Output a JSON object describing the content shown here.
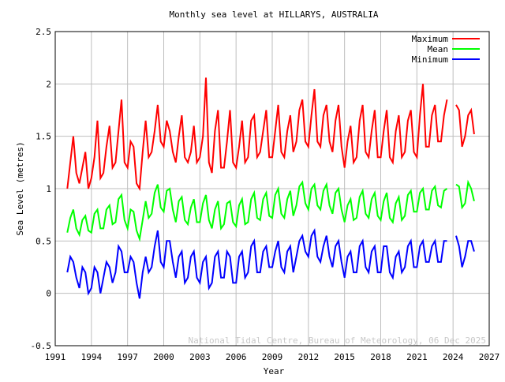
{
  "chart_data": {
    "type": "line",
    "title": "Monthly sea level at HILLARYS, AUSTRALIA",
    "xlabel": "Year",
    "ylabel": "Sea Level (metres)",
    "xlim": [
      1991,
      2027
    ],
    "ylim": [
      -0.5,
      2.5
    ],
    "xticks": [
      "1991",
      "1994",
      "1997",
      "2000",
      "2003",
      "2006",
      "2009",
      "2012",
      "2015",
      "2018",
      "2021",
      "2024",
      "2027"
    ],
    "yticks": [
      "-0.5",
      "0",
      "0.5",
      "1",
      "1.5",
      "2",
      "2.5"
    ],
    "grid": true,
    "legend_position": "top-right",
    "watermark": "National Tidal Centre, Bureau of Meteorology, 06 Dec 2025",
    "x_start": 1992,
    "x_step": 0.25,
    "series": [
      {
        "name": "Maximum",
        "color": "#ff0000",
        "values": [
          1.0,
          1.25,
          1.5,
          1.15,
          1.05,
          1.2,
          1.35,
          1.0,
          1.1,
          1.3,
          1.65,
          1.1,
          1.15,
          1.4,
          1.6,
          1.2,
          1.25,
          1.55,
          1.85,
          1.25,
          1.2,
          1.45,
          1.4,
          1.05,
          1.0,
          1.35,
          1.65,
          1.3,
          1.35,
          1.55,
          1.8,
          1.45,
          1.4,
          1.65,
          1.55,
          1.35,
          1.25,
          1.5,
          1.7,
          1.3,
          1.25,
          1.35,
          1.6,
          1.25,
          1.3,
          1.5,
          2.06,
          1.25,
          1.15,
          1.55,
          1.75,
          1.2,
          1.2,
          1.45,
          1.75,
          1.25,
          1.2,
          1.4,
          1.65,
          1.25,
          1.3,
          1.65,
          1.7,
          1.3,
          1.35,
          1.55,
          1.75,
          1.3,
          1.3,
          1.55,
          1.8,
          1.35,
          1.3,
          1.55,
          1.7,
          1.35,
          1.45,
          1.75,
          1.85,
          1.45,
          1.4,
          1.7,
          1.95,
          1.45,
          1.4,
          1.7,
          1.8,
          1.45,
          1.35,
          1.65,
          1.8,
          1.4,
          1.2,
          1.45,
          1.6,
          1.25,
          1.3,
          1.65,
          1.8,
          1.35,
          1.3,
          1.55,
          1.75,
          1.3,
          1.3,
          1.55,
          1.75,
          1.3,
          1.25,
          1.55,
          1.7,
          1.3,
          1.35,
          1.65,
          1.75,
          1.35,
          1.3,
          1.7,
          2.0,
          1.4,
          1.4,
          1.7,
          1.8,
          1.45,
          1.45,
          1.7,
          1.85,
          null,
          null,
          1.8,
          1.75,
          1.4,
          1.5,
          1.7,
          1.75,
          1.52
        ]
      },
      {
        "name": "Mean",
        "color": "#00ff00",
        "values": [
          0.58,
          0.72,
          0.8,
          0.62,
          0.56,
          0.7,
          0.74,
          0.6,
          0.58,
          0.76,
          0.8,
          0.62,
          0.62,
          0.8,
          0.84,
          0.66,
          0.68,
          0.9,
          0.94,
          0.7,
          0.62,
          0.8,
          0.78,
          0.6,
          0.52,
          0.7,
          0.88,
          0.72,
          0.76,
          0.96,
          1.04,
          0.82,
          0.78,
          0.98,
          1.0,
          0.8,
          0.68,
          0.88,
          0.92,
          0.7,
          0.66,
          0.82,
          0.9,
          0.68,
          0.68,
          0.86,
          0.94,
          0.7,
          0.62,
          0.8,
          0.88,
          0.62,
          0.66,
          0.86,
          0.88,
          0.68,
          0.64,
          0.84,
          0.9,
          0.66,
          0.68,
          0.9,
          0.96,
          0.72,
          0.7,
          0.9,
          0.96,
          0.74,
          0.72,
          0.94,
          1.0,
          0.76,
          0.72,
          0.9,
          0.98,
          0.74,
          0.84,
          1.02,
          1.06,
          0.86,
          0.8,
          1.0,
          1.04,
          0.84,
          0.8,
          0.98,
          1.04,
          0.84,
          0.76,
          0.96,
          1.0,
          0.8,
          0.68,
          0.84,
          0.9,
          0.7,
          0.72,
          0.92,
          0.98,
          0.76,
          0.72,
          0.9,
          0.96,
          0.74,
          0.7,
          0.88,
          0.96,
          0.72,
          0.68,
          0.86,
          0.92,
          0.7,
          0.74,
          0.94,
          0.98,
          0.78,
          0.78,
          0.96,
          1.0,
          0.8,
          0.8,
          0.98,
          1.02,
          0.84,
          0.82,
          0.98,
          1.0,
          null,
          null,
          1.04,
          1.02,
          0.82,
          0.86,
          1.06,
          1.0,
          0.88
        ]
      },
      {
        "name": "Minimum",
        "color": "#0000ff",
        "values": [
          0.2,
          0.35,
          0.3,
          0.15,
          0.05,
          0.25,
          0.2,
          0.0,
          0.05,
          0.25,
          0.2,
          0.0,
          0.15,
          0.3,
          0.25,
          0.1,
          0.2,
          0.45,
          0.4,
          0.2,
          0.2,
          0.35,
          0.3,
          0.1,
          -0.05,
          0.2,
          0.35,
          0.2,
          0.25,
          0.45,
          0.6,
          0.3,
          0.25,
          0.5,
          0.5,
          0.3,
          0.15,
          0.35,
          0.4,
          0.1,
          0.15,
          0.35,
          0.4,
          0.15,
          0.1,
          0.3,
          0.35,
          0.05,
          0.1,
          0.35,
          0.4,
          0.15,
          0.15,
          0.4,
          0.35,
          0.1,
          0.1,
          0.35,
          0.4,
          0.15,
          0.2,
          0.45,
          0.5,
          0.2,
          0.2,
          0.4,
          0.45,
          0.25,
          0.25,
          0.4,
          0.5,
          0.25,
          0.2,
          0.4,
          0.45,
          0.2,
          0.35,
          0.5,
          0.55,
          0.4,
          0.35,
          0.55,
          0.6,
          0.35,
          0.3,
          0.45,
          0.55,
          0.35,
          0.25,
          0.45,
          0.5,
          0.3,
          0.15,
          0.35,
          0.4,
          0.2,
          0.2,
          0.45,
          0.5,
          0.25,
          0.2,
          0.4,
          0.45,
          0.2,
          0.2,
          0.45,
          0.45,
          0.2,
          0.15,
          0.35,
          0.4,
          0.2,
          0.25,
          0.45,
          0.5,
          0.25,
          0.25,
          0.45,
          0.5,
          0.3,
          0.3,
          0.45,
          0.5,
          0.3,
          0.3,
          0.5,
          0.5,
          null,
          null,
          0.55,
          0.45,
          0.25,
          0.35,
          0.5,
          0.5,
          0.4
        ]
      }
    ]
  }
}
